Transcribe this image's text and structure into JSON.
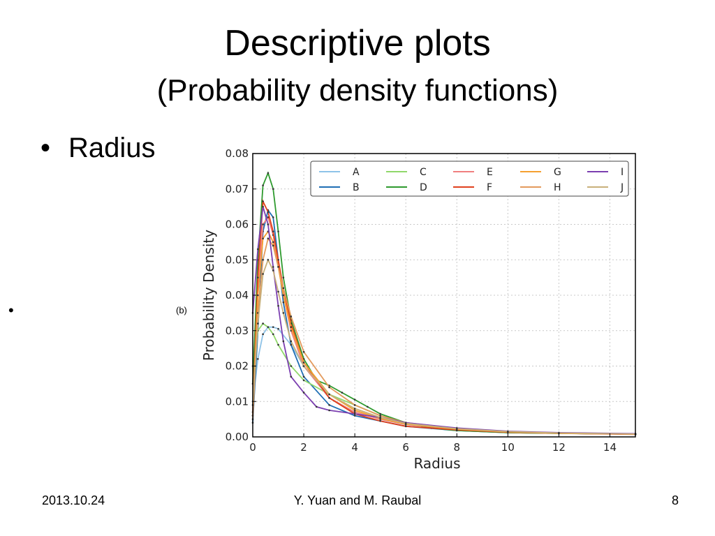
{
  "slide": {
    "title": "Descriptive plots",
    "subtitle": "(Probability density functions)",
    "bullet": "Radius",
    "bullet_marker": "•",
    "stray_marker": "•",
    "panel_label": "(b)"
  },
  "footer": {
    "date": "2013.10.24",
    "authors": "Y. Yuan and M. Raubal",
    "page": "8"
  },
  "chart_data": {
    "type": "line",
    "title": "",
    "xlabel": "Radius",
    "ylabel": "Probability Density",
    "xlim": [
      0,
      15
    ],
    "ylim": [
      0,
      0.08
    ],
    "xticks": [
      "0",
      "2",
      "4",
      "6",
      "8",
      "10",
      "12",
      "14"
    ],
    "yticks": [
      "0.00",
      "0.01",
      "0.02",
      "0.03",
      "0.04",
      "0.05",
      "0.06",
      "0.07",
      "0.08"
    ],
    "grid": true,
    "legend_position": "top",
    "series": [
      {
        "name": "A",
        "color": "#8ec3e8",
        "points": [
          [
            0,
            0.01
          ],
          [
            0.2,
            0.022
          ],
          [
            0.4,
            0.029
          ],
          [
            0.6,
            0.031
          ],
          [
            0.8,
            0.031
          ],
          [
            1.0,
            0.0305
          ],
          [
            1.5,
            0.026
          ],
          [
            2,
            0.02
          ],
          [
            3,
            0.011
          ],
          [
            4,
            0.007
          ],
          [
            5,
            0.005
          ],
          [
            6,
            0.0035
          ],
          [
            8,
            0.002
          ],
          [
            10,
            0.0012
          ],
          [
            12,
            0.001
          ],
          [
            15,
            0.0008
          ]
        ]
      },
      {
        "name": "B",
        "color": "#1f6eb4",
        "points": [
          [
            0,
            0.004
          ],
          [
            0.2,
            0.03
          ],
          [
            0.4,
            0.058
          ],
          [
            0.6,
            0.064
          ],
          [
            0.8,
            0.062
          ],
          [
            1.0,
            0.05
          ],
          [
            1.2,
            0.038
          ],
          [
            1.5,
            0.026
          ],
          [
            2,
            0.017
          ],
          [
            3,
            0.009
          ],
          [
            4,
            0.006
          ],
          [
            5,
            0.0045
          ],
          [
            6,
            0.003
          ],
          [
            8,
            0.0018
          ],
          [
            10,
            0.0012
          ],
          [
            12,
            0.001
          ],
          [
            15,
            0.0008
          ]
        ]
      },
      {
        "name": "C",
        "color": "#90d86a",
        "points": [
          [
            0,
            0.02
          ],
          [
            0.2,
            0.03
          ],
          [
            0.4,
            0.032
          ],
          [
            0.6,
            0.031
          ],
          [
            0.8,
            0.029
          ],
          [
            1.0,
            0.026
          ],
          [
            1.5,
            0.02
          ],
          [
            2,
            0.016
          ],
          [
            3,
            0.012
          ],
          [
            4,
            0.009
          ],
          [
            5,
            0.006
          ],
          [
            6,
            0.004
          ],
          [
            8,
            0.002
          ],
          [
            10,
            0.0012
          ],
          [
            12,
            0.001
          ],
          [
            15,
            0.0008
          ]
        ]
      },
      {
        "name": "D",
        "color": "#2e9a2e",
        "points": [
          [
            0,
            0.015
          ],
          [
            0.2,
            0.05
          ],
          [
            0.4,
            0.071
          ],
          [
            0.6,
            0.0745
          ],
          [
            0.8,
            0.07
          ],
          [
            1.0,
            0.058
          ],
          [
            1.2,
            0.045
          ],
          [
            1.5,
            0.033
          ],
          [
            2,
            0.022
          ],
          [
            2.5,
            0.016
          ],
          [
            3,
            0.0145
          ],
          [
            3.5,
            0.0125
          ],
          [
            4,
            0.0105
          ],
          [
            4.5,
            0.0085
          ],
          [
            5,
            0.0065
          ],
          [
            6,
            0.004
          ],
          [
            7,
            0.0025
          ],
          [
            8,
            0.0018
          ],
          [
            10,
            0.0012
          ],
          [
            12,
            0.001
          ],
          [
            15,
            0.0008
          ]
        ]
      },
      {
        "name": "E",
        "color": "#f07f7f",
        "points": [
          [
            0,
            0.006
          ],
          [
            0.2,
            0.04
          ],
          [
            0.4,
            0.06
          ],
          [
            0.6,
            0.062
          ],
          [
            0.8,
            0.057
          ],
          [
            1.0,
            0.049
          ],
          [
            1.2,
            0.04
          ],
          [
            1.5,
            0.03
          ],
          [
            2,
            0.02
          ],
          [
            3,
            0.011
          ],
          [
            4,
            0.007
          ],
          [
            5,
            0.005
          ],
          [
            6,
            0.0035
          ],
          [
            8,
            0.0022
          ],
          [
            10,
            0.0015
          ],
          [
            12,
            0.0011
          ],
          [
            15,
            0.0008
          ]
        ]
      },
      {
        "name": "F",
        "color": "#e0401d",
        "points": [
          [
            0,
            0.007
          ],
          [
            0.2,
            0.045
          ],
          [
            0.4,
            0.0665
          ],
          [
            0.6,
            0.0635
          ],
          [
            0.8,
            0.058
          ],
          [
            1.0,
            0.05
          ],
          [
            1.2,
            0.042
          ],
          [
            1.5,
            0.032
          ],
          [
            2,
            0.021
          ],
          [
            3,
            0.011
          ],
          [
            4,
            0.0065
          ],
          [
            5,
            0.0045
          ],
          [
            6,
            0.003
          ],
          [
            8,
            0.002
          ],
          [
            10,
            0.0013
          ],
          [
            12,
            0.001
          ],
          [
            15,
            0.0007
          ]
        ]
      },
      {
        "name": "G",
        "color": "#f5a030",
        "points": [
          [
            0,
            0.006
          ],
          [
            0.2,
            0.04
          ],
          [
            0.4,
            0.056
          ],
          [
            0.6,
            0.058
          ],
          [
            0.8,
            0.055
          ],
          [
            1.0,
            0.048
          ],
          [
            1.2,
            0.04
          ],
          [
            1.5,
            0.031
          ],
          [
            2,
            0.021
          ],
          [
            3,
            0.012
          ],
          [
            4,
            0.0075
          ],
          [
            5,
            0.0052
          ],
          [
            6,
            0.0036
          ],
          [
            8,
            0.0022
          ],
          [
            10,
            0.0014
          ],
          [
            12,
            0.001
          ],
          [
            15,
            0.0008
          ]
        ]
      },
      {
        "name": "H",
        "color": "#e39a5c",
        "points": [
          [
            0,
            0.005
          ],
          [
            0.2,
            0.035
          ],
          [
            0.4,
            0.05
          ],
          [
            0.6,
            0.056
          ],
          [
            0.8,
            0.054
          ],
          [
            1.0,
            0.048
          ],
          [
            1.2,
            0.042
          ],
          [
            1.5,
            0.034
          ],
          [
            2,
            0.024
          ],
          [
            3,
            0.014
          ],
          [
            4,
            0.009
          ],
          [
            5,
            0.006
          ],
          [
            6,
            0.004
          ],
          [
            8,
            0.0024
          ],
          [
            10,
            0.0015
          ],
          [
            12,
            0.0011
          ],
          [
            15,
            0.0008
          ]
        ]
      },
      {
        "name": "I",
        "color": "#7b3fb0",
        "points": [
          [
            0,
            0.035
          ],
          [
            0.2,
            0.053
          ],
          [
            0.4,
            0.065
          ],
          [
            0.6,
            0.06
          ],
          [
            0.8,
            0.048
          ],
          [
            1.0,
            0.037
          ],
          [
            1.2,
            0.027
          ],
          [
            1.5,
            0.017
          ],
          [
            2,
            0.0125
          ],
          [
            2.5,
            0.0085
          ],
          [
            3,
            0.0075
          ],
          [
            4,
            0.0065
          ],
          [
            5,
            0.0055
          ],
          [
            6,
            0.004
          ],
          [
            8,
            0.0025
          ],
          [
            10,
            0.0016
          ],
          [
            12,
            0.0012
          ],
          [
            15,
            0.0009
          ]
        ]
      },
      {
        "name": "J",
        "color": "#c8b07a",
        "points": [
          [
            0,
            0.009
          ],
          [
            0.2,
            0.032
          ],
          [
            0.4,
            0.046
          ],
          [
            0.6,
            0.05
          ],
          [
            0.8,
            0.047
          ],
          [
            1.0,
            0.041
          ],
          [
            1.2,
            0.035
          ],
          [
            1.5,
            0.027
          ],
          [
            2,
            0.02
          ],
          [
            3,
            0.012
          ],
          [
            4,
            0.008
          ],
          [
            5,
            0.0055
          ],
          [
            6,
            0.0038
          ],
          [
            8,
            0.0023
          ],
          [
            10,
            0.0015
          ],
          [
            12,
            0.0011
          ],
          [
            15,
            0.0008
          ]
        ]
      }
    ]
  }
}
